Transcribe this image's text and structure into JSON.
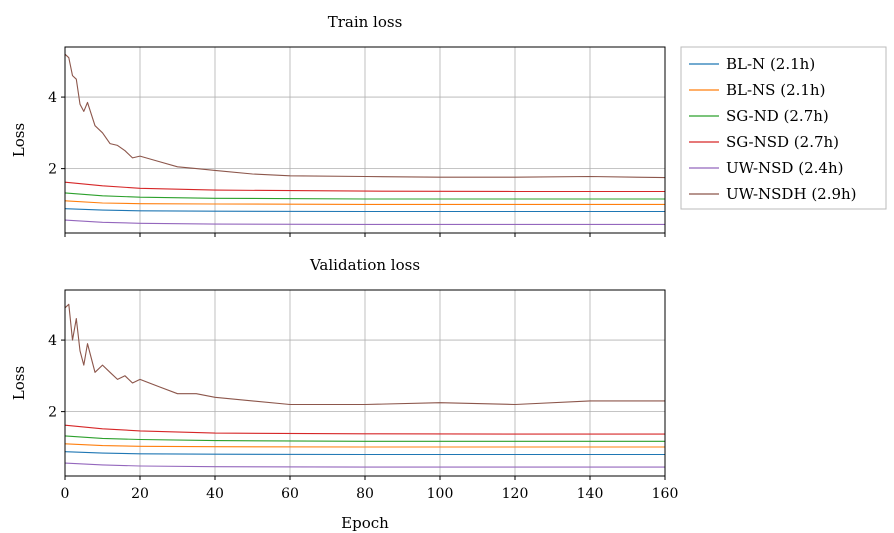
{
  "figure": {
    "xlabel": "Epoch",
    "xlim": [
      0,
      160
    ],
    "xticks": [
      0,
      20,
      40,
      60,
      80,
      100,
      120,
      140,
      160
    ],
    "grid": true,
    "legend_placement": "right of top panel"
  },
  "legend": [
    {
      "label": "BL-N (2.1h)",
      "color": "#1f77b4"
    },
    {
      "label": "BL-NS (2.1h)",
      "color": "#ff7f0e"
    },
    {
      "label": "SG-ND (2.7h)",
      "color": "#2ca02c"
    },
    {
      "label": "SG-NSD (2.7h)",
      "color": "#d62728"
    },
    {
      "label": "UW-NSD (2.4h)",
      "color": "#9467bd"
    },
    {
      "label": "UW-NSDH (2.9h)",
      "color": "#8c564b"
    }
  ],
  "chart_data": [
    {
      "type": "line",
      "title": "Train loss",
      "xlabel": "",
      "ylabel": "Loss",
      "xlim": [
        0,
        160
      ],
      "ylim": [
        0.2,
        5.4
      ],
      "yticks": [
        2,
        4
      ],
      "series": [
        {
          "name": "BL-N (2.1h)",
          "color": "#1f77b4",
          "x": [
            0,
            10,
            20,
            40,
            80,
            120,
            160
          ],
          "y": [
            0.88,
            0.84,
            0.82,
            0.81,
            0.8,
            0.8,
            0.8
          ]
        },
        {
          "name": "BL-NS (2.1h)",
          "color": "#ff7f0e",
          "x": [
            0,
            10,
            20,
            40,
            80,
            120,
            160
          ],
          "y": [
            1.1,
            1.04,
            1.02,
            1.01,
            1.0,
            1.0,
            1.0
          ]
        },
        {
          "name": "SG-ND (2.7h)",
          "color": "#2ca02c",
          "x": [
            0,
            10,
            20,
            40,
            80,
            120,
            160
          ],
          "y": [
            1.32,
            1.24,
            1.2,
            1.17,
            1.15,
            1.15,
            1.15
          ]
        },
        {
          "name": "SG-NSD (2.7h)",
          "color": "#d62728",
          "x": [
            0,
            10,
            20,
            40,
            80,
            120,
            160
          ],
          "y": [
            1.62,
            1.52,
            1.45,
            1.4,
            1.37,
            1.36,
            1.36
          ]
        },
        {
          "name": "UW-NSD (2.4h)",
          "color": "#9467bd",
          "x": [
            0,
            10,
            20,
            40,
            80,
            120,
            160
          ],
          "y": [
            0.56,
            0.5,
            0.47,
            0.45,
            0.44,
            0.44,
            0.44
          ]
        },
        {
          "name": "UW-NSDH (2.9h)",
          "color": "#8c564b",
          "x": [
            0,
            1,
            2,
            3,
            4,
            5,
            6,
            8,
            10,
            12,
            14,
            16,
            18,
            20,
            25,
            30,
            35,
            40,
            50,
            60,
            80,
            100,
            120,
            140,
            160
          ],
          "y": [
            5.2,
            5.1,
            4.6,
            4.5,
            3.8,
            3.6,
            3.85,
            3.2,
            3.0,
            2.7,
            2.65,
            2.5,
            2.3,
            2.35,
            2.2,
            2.05,
            2.0,
            1.95,
            1.85,
            1.8,
            1.78,
            1.76,
            1.76,
            1.78,
            1.75
          ]
        }
      ]
    },
    {
      "type": "line",
      "title": "Validation loss",
      "xlabel": "Epoch",
      "ylabel": "Loss",
      "xlim": [
        0,
        160
      ],
      "ylim": [
        0.2,
        5.4
      ],
      "yticks": [
        2,
        4
      ],
      "series": [
        {
          "name": "BL-N (2.1h)",
          "color": "#1f77b4",
          "x": [
            0,
            10,
            20,
            40,
            80,
            120,
            160
          ],
          "y": [
            0.88,
            0.84,
            0.82,
            0.81,
            0.8,
            0.8,
            0.8
          ]
        },
        {
          "name": "BL-NS (2.1h)",
          "color": "#ff7f0e",
          "x": [
            0,
            10,
            20,
            40,
            80,
            120,
            160
          ],
          "y": [
            1.1,
            1.05,
            1.03,
            1.02,
            1.01,
            1.01,
            1.01
          ]
        },
        {
          "name": "SG-ND (2.7h)",
          "color": "#2ca02c",
          "x": [
            0,
            10,
            20,
            40,
            80,
            120,
            160
          ],
          "y": [
            1.32,
            1.25,
            1.22,
            1.19,
            1.17,
            1.17,
            1.17
          ]
        },
        {
          "name": "SG-NSD (2.7h)",
          "color": "#d62728",
          "x": [
            0,
            10,
            20,
            40,
            80,
            120,
            160
          ],
          "y": [
            1.62,
            1.52,
            1.46,
            1.4,
            1.38,
            1.37,
            1.37
          ]
        },
        {
          "name": "UW-NSD (2.4h)",
          "color": "#9467bd",
          "x": [
            0,
            10,
            20,
            40,
            80,
            120,
            160
          ],
          "y": [
            0.56,
            0.51,
            0.48,
            0.46,
            0.45,
            0.45,
            0.45
          ]
        },
        {
          "name": "UW-NSDH (2.9h)",
          "color": "#8c564b",
          "x": [
            0,
            1,
            2,
            3,
            4,
            5,
            6,
            8,
            10,
            12,
            14,
            16,
            18,
            20,
            25,
            30,
            35,
            40,
            50,
            60,
            80,
            100,
            120,
            140,
            160
          ],
          "y": [
            4.9,
            5.0,
            4.0,
            4.6,
            3.7,
            3.3,
            3.9,
            3.1,
            3.3,
            3.1,
            2.9,
            3.0,
            2.8,
            2.9,
            2.7,
            2.5,
            2.5,
            2.4,
            2.3,
            2.2,
            2.2,
            2.25,
            2.2,
            2.3,
            2.3
          ]
        }
      ]
    }
  ]
}
